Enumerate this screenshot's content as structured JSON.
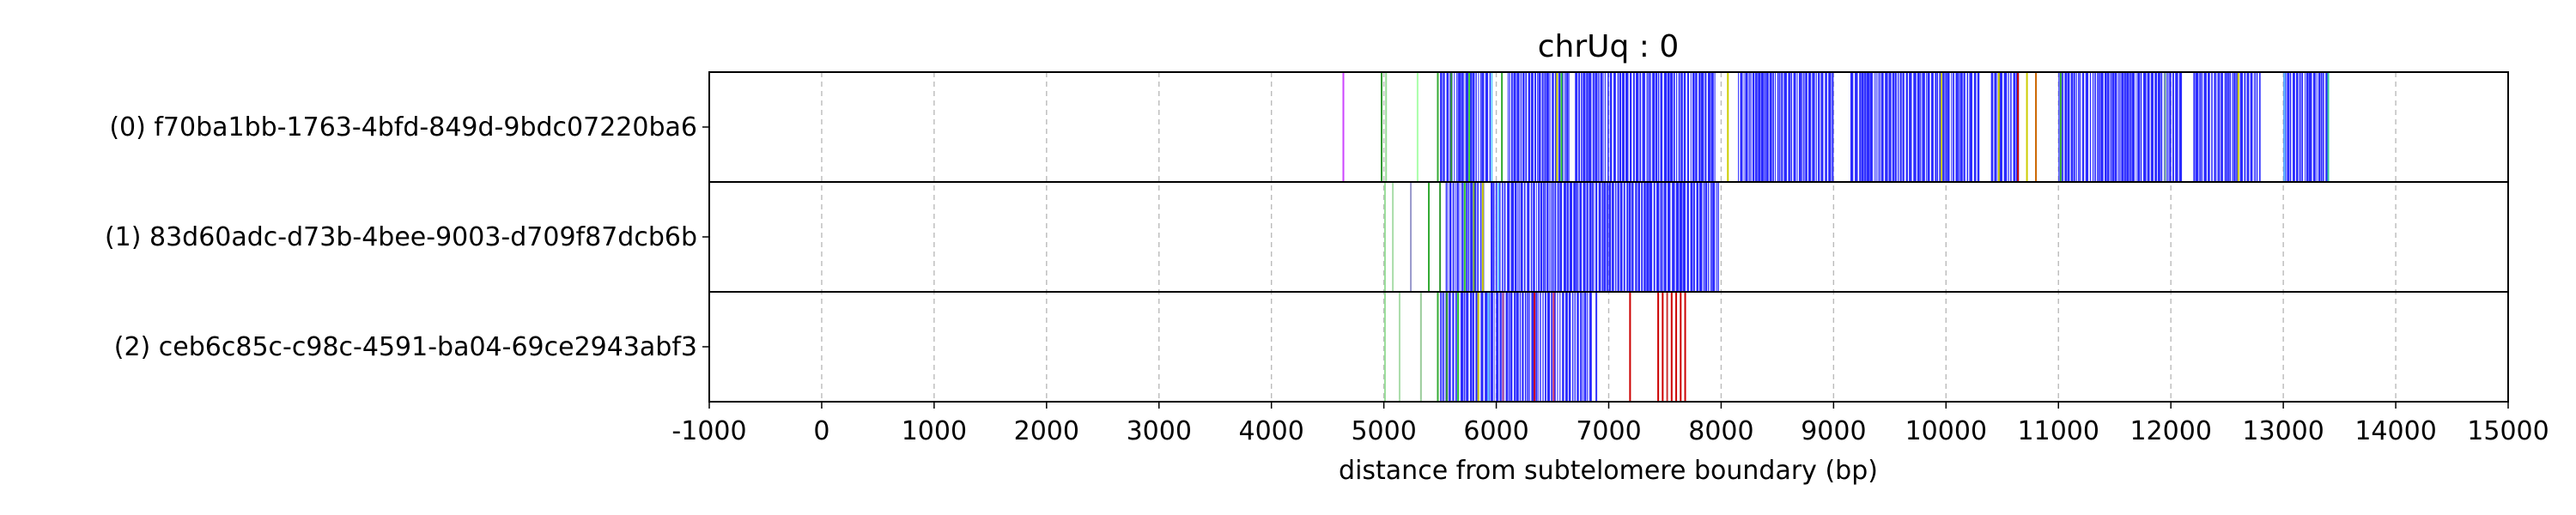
{
  "chart_data": {
    "type": "heatmap",
    "title": "chrUq : 0",
    "xlabel": "distance from subtelomere boundary (bp)",
    "ylabel": "",
    "xlim": [
      -1000,
      15000
    ],
    "x_ticks": [
      -1000,
      0,
      1000,
      2000,
      3000,
      4000,
      5000,
      6000,
      7000,
      8000,
      9000,
      10000,
      11000,
      12000,
      13000,
      14000,
      15000
    ],
    "grid": "vertical dashed",
    "series": [
      {
        "name": "(0) f70ba1bb-1763-4bfd-849d-9bdc07220ba6",
        "read_start": 4640,
        "read_end": 13420,
        "dense_blocks": [
          [
            5500,
            5950
          ],
          [
            6100,
            6650
          ],
          [
            6700,
            7950
          ],
          [
            8150,
            9000
          ],
          [
            9150,
            10300
          ],
          [
            10400,
            10650
          ],
          [
            11000,
            11500
          ],
          [
            11500,
            12100
          ],
          [
            12200,
            12800
          ],
          [
            13000,
            13400
          ]
        ],
        "marks": [
          {
            "x": 4640,
            "color": "#cc44ff"
          },
          {
            "x": 4980,
            "color": "#339933"
          },
          {
            "x": 5020,
            "color": "#99dd99"
          },
          {
            "x": 5300,
            "color": "#aaffaa"
          },
          {
            "x": 5480,
            "color": "#33aa33"
          },
          {
            "x": 5600,
            "color": "#339933"
          },
          {
            "x": 5760,
            "color": "#33cc33"
          },
          {
            "x": 5960,
            "color": "#66ccff"
          },
          {
            "x": 6050,
            "color": "#33aa33"
          },
          {
            "x": 6540,
            "color": "#cccc00"
          },
          {
            "x": 6580,
            "color": "#33cc33"
          },
          {
            "x": 8060,
            "color": "#cccc00"
          },
          {
            "x": 9960,
            "color": "#cccc00"
          },
          {
            "x": 10470,
            "color": "#cccc00"
          },
          {
            "x": 10640,
            "color": "#cc0000"
          },
          {
            "x": 10720,
            "color": "#cccc00"
          },
          {
            "x": 10800,
            "color": "#cc6600"
          },
          {
            "x": 11020,
            "color": "#33aa33"
          },
          {
            "x": 11950,
            "color": "#99cc99"
          },
          {
            "x": 12600,
            "color": "#cccc00"
          },
          {
            "x": 13010,
            "color": "#66ccff"
          },
          {
            "x": 13400,
            "color": "#33cc99"
          }
        ]
      },
      {
        "name": "(1) 83d60adc-d73b-4bee-9003-d709f87dcb6b",
        "read_start": 5000,
        "read_end": 7980,
        "dense_blocks": [
          [
            5550,
            5900
          ],
          [
            5950,
            7000
          ],
          [
            7000,
            7980
          ]
        ],
        "marks": [
          {
            "x": 5010,
            "color": "#99dd99"
          },
          {
            "x": 5080,
            "color": "#aaddaa"
          },
          {
            "x": 5240,
            "color": "#9999cc"
          },
          {
            "x": 5400,
            "color": "#33aa33"
          },
          {
            "x": 5500,
            "color": "#339933"
          },
          {
            "x": 5720,
            "color": "#33cc33"
          },
          {
            "x": 5800,
            "color": "#669933"
          },
          {
            "x": 5880,
            "color": "#cccc00"
          },
          {
            "x": 6020,
            "color": "#66ccff"
          }
        ]
      },
      {
        "name": "(2) ceb6c85c-c98c-4591-ba04-69ce2943abf3",
        "read_start": 4980,
        "read_end": 7700,
        "dense_blocks": [
          [
            5500,
            6050
          ],
          [
            6050,
            6850
          ]
        ],
        "marks": [
          {
            "x": 5010,
            "color": "#99dd99"
          },
          {
            "x": 5140,
            "color": "#aaddaa"
          },
          {
            "x": 5330,
            "color": "#99cc99"
          },
          {
            "x": 5480,
            "color": "#33aa33"
          },
          {
            "x": 5560,
            "color": "#339933"
          },
          {
            "x": 5660,
            "color": "#33cc33"
          },
          {
            "x": 5840,
            "color": "#cccc00"
          },
          {
            "x": 5930,
            "color": "#66ccff"
          },
          {
            "x": 6060,
            "color": "#cc6699"
          },
          {
            "x": 6340,
            "color": "#cc0000"
          },
          {
            "x": 6510,
            "color": "#cc3366"
          },
          {
            "x": 6890,
            "color": "#3333ff"
          },
          {
            "x": 7190,
            "color": "#cc0000"
          },
          {
            "x": 7440,
            "color": "#cc0000"
          },
          {
            "x": 7480,
            "color": "#cc0000"
          },
          {
            "x": 7520,
            "color": "#cc3333"
          },
          {
            "x": 7560,
            "color": "#cc0000"
          },
          {
            "x": 7600,
            "color": "#cc0000"
          },
          {
            "x": 7640,
            "color": "#cc0000"
          },
          {
            "x": 7680,
            "color": "#cc0000"
          }
        ]
      }
    ],
    "colors": {
      "dense": "#2b2bff",
      "frame": "#000000",
      "grid": "#bbbbbb"
    }
  }
}
